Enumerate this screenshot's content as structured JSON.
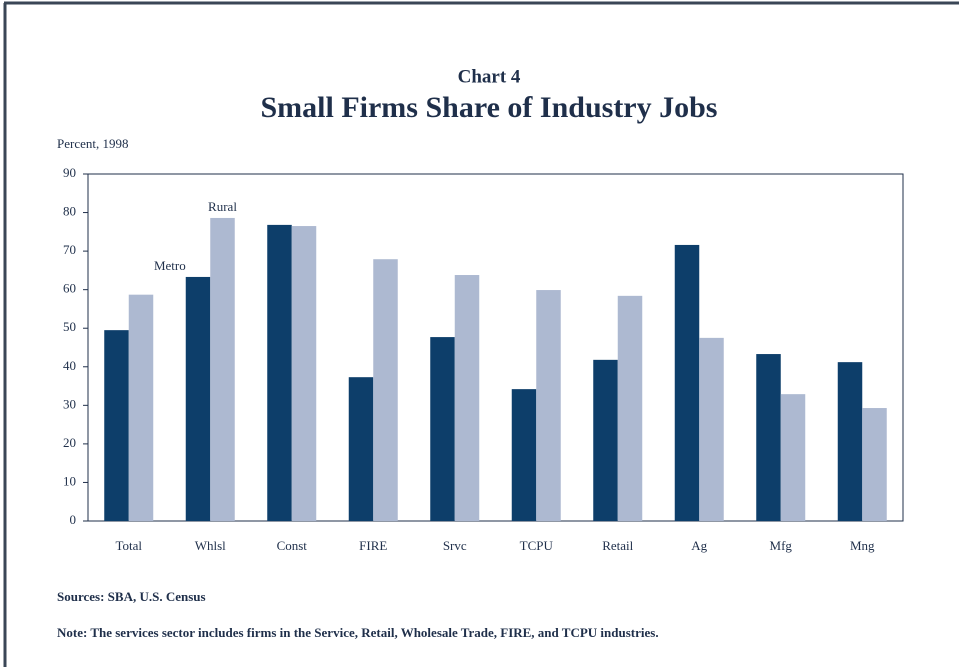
{
  "chart_data": {
    "type": "bar",
    "subtitle": "Chart 4",
    "title": "Small Firms Share of Industry Jobs",
    "y_label": "Percent, 1998",
    "categories": [
      "Total",
      "Whlsl",
      "Const",
      "FIRE",
      "Srvc",
      "TCPU",
      "Retail",
      "Ag",
      "Mfg",
      "Mng"
    ],
    "series": [
      {
        "name": "Metro",
        "color": "#0d3e6a",
        "values": [
          49.5,
          63.3,
          76.8,
          37.3,
          47.7,
          34.2,
          41.8,
          71.6,
          43.3,
          41.2
        ]
      },
      {
        "name": "Rural",
        "color": "#adb9d1",
        "values": [
          58.7,
          78.6,
          76.5,
          67.9,
          63.8,
          59.9,
          58.4,
          47.5,
          32.9,
          29.3
        ]
      }
    ],
    "ylim": [
      0,
      90
    ],
    "yticks": [
      0,
      10,
      20,
      30,
      40,
      50,
      60,
      70,
      80,
      90
    ],
    "sources": "Sources: SBA, U.S. Census",
    "note": "Note: The services sector includes firms in the Service, Retail, Wholesale Trade, FIRE, and TCPU industries."
  }
}
